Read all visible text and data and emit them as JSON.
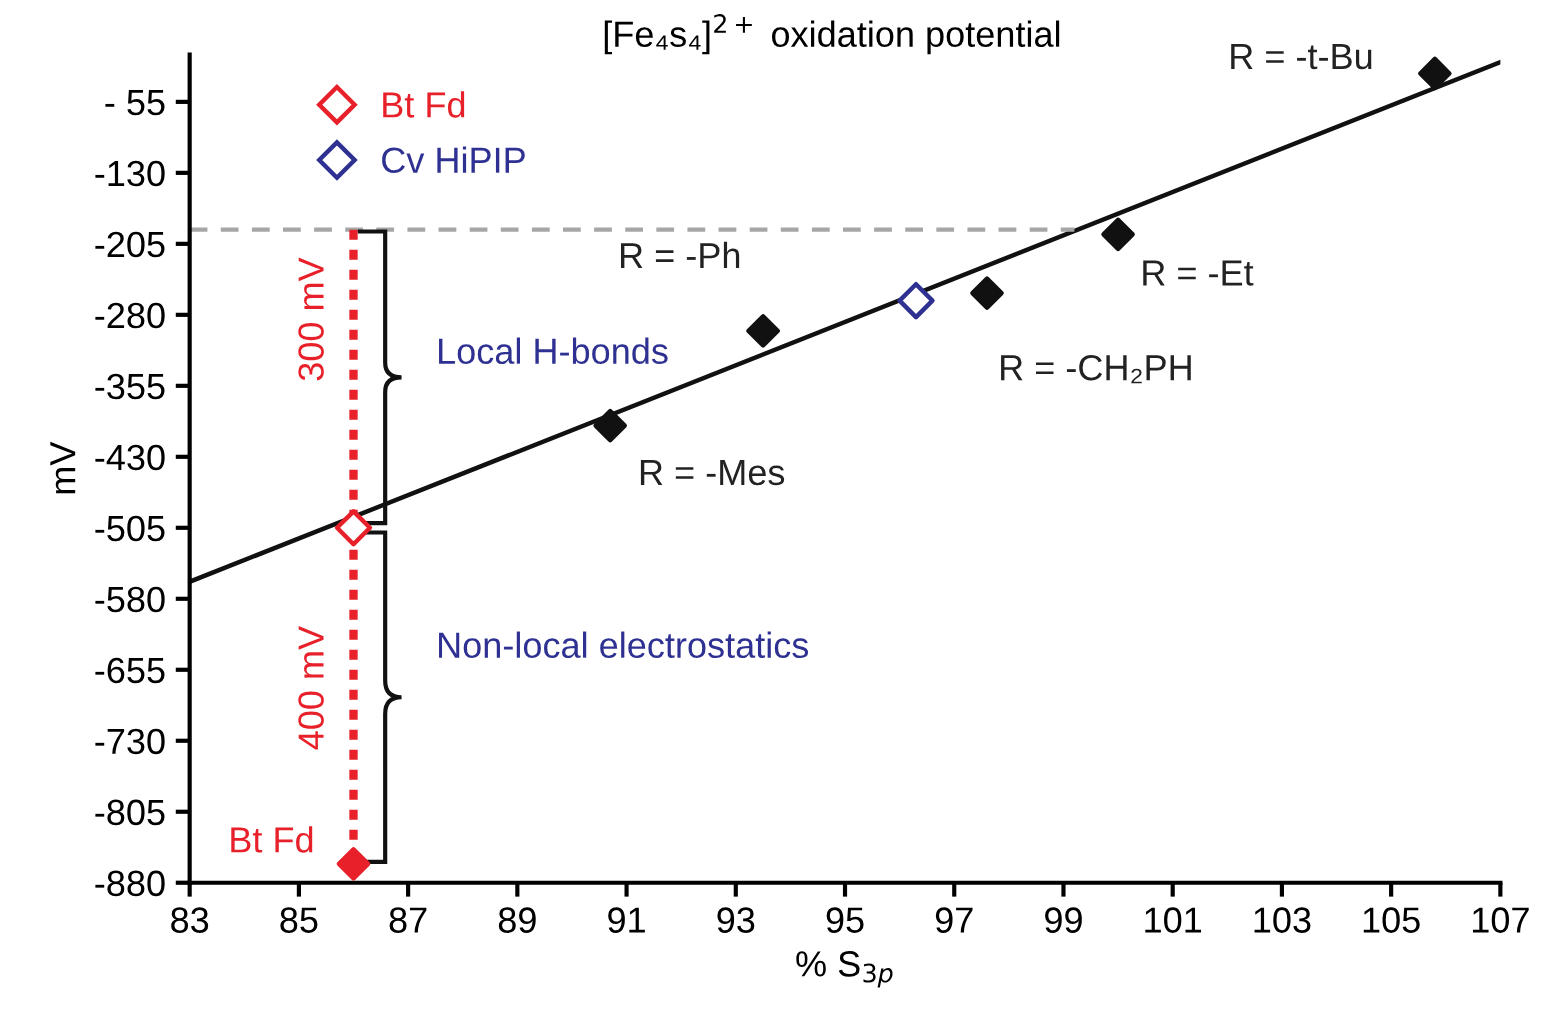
{
  "chart_data": {
    "type": "scatter",
    "title": "[Fe₄s₄]$^{2+}$ oxidation potential",
    "xlabel": "% S$_{3p}$",
    "ylabel": "mV",
    "xlim": [
      83,
      107
    ],
    "xticks": [
      83,
      85,
      87,
      89,
      91,
      93,
      95,
      97,
      99,
      101,
      103,
      105,
      107
    ],
    "ylim": [
      -880,
      -5
    ],
    "yticks": [
      {
        "value": -55,
        "label": "- 55"
      },
      {
        "value": -130,
        "label": "-130"
      },
      {
        "value": -205,
        "label": "-205"
      },
      {
        "value": -280,
        "label": "-280"
      },
      {
        "value": -355,
        "label": "-355"
      },
      {
        "value": -430,
        "label": "-430"
      },
      {
        "value": -505,
        "label": "-505"
      },
      {
        "value": -580,
        "label": "-580"
      },
      {
        "value": -655,
        "label": "-655"
      },
      {
        "value": -730,
        "label": "-730"
      },
      {
        "value": -805,
        "label": "-805"
      },
      {
        "value": -880,
        "label": "-880"
      }
    ],
    "grid": false,
    "legend": "top left",
    "series": [
      {
        "type": "line",
        "color": "#111111",
        "x": [
          83,
          107
        ],
        "values": [
          -562,
          -13
        ],
        "line_style": "solid",
        "marker": "none"
      },
      {
        "type": "line",
        "color": "#a6a6a6",
        "x": [
          83,
          99.2
        ],
        "values": [
          -190,
          -190
        ],
        "line_style": "dashed",
        "marker": "none"
      },
      {
        "type": "line",
        "color": "#e8202a",
        "x": [
          86,
          86
        ],
        "values": [
          -190,
          -838
        ],
        "line_style": "dotted",
        "marker": "none"
      },
      {
        "color": "#111111",
        "x": [
          90.7,
          93.5,
          97.6,
          100.0,
          105.8
        ],
        "values": [
          -397,
          -297,
          -257,
          -195,
          -25
        ],
        "marker": "diamond"
      },
      {
        "color": "#e8202a",
        "x": [
          86
        ],
        "values": [
          -860
        ],
        "marker": "diamond"
      },
      {
        "name": "Bt Fd",
        "color": "#e8202a",
        "x": [
          86
        ],
        "values": [
          -505
        ],
        "marker": "diamond"
      },
      {
        "name": "Cv HiPIP",
        "color": "#2e3192",
        "x": [
          96.3
        ],
        "values": [
          -265
        ],
        "marker": "diamond"
      }
    ],
    "annotations": [
      {
        "text": "R = -Mes",
        "x": 90.7,
        "y": -397
      },
      {
        "text": "R = -Ph",
        "x": 93.5,
        "y": -297
      },
      {
        "text": "R = -CH₂PH",
        "x": 97.6,
        "y": -257
      },
      {
        "text": "R = -Et",
        "x": 100.0,
        "y": -195
      },
      {
        "text": "R = -t-Bu",
        "x": 105.8,
        "y": -25
      },
      {
        "text": "Bt Fd",
        "x": 86,
        "y": -838
      },
      "300 mV",
      "400 mV",
      {
        "text": "Local H-bonds",
        "x": 86,
        "y": -190
      },
      "Non-local electrostatics"
    ]
  }
}
